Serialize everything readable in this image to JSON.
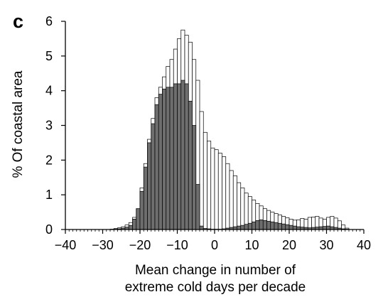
{
  "chart_data": {
    "type": "bar",
    "panel_label": "c",
    "xlabel_lines": [
      "Mean change in number of",
      "extreme cold days per decade"
    ],
    "ylabel": "% Of coastal area",
    "xlim": [
      -40,
      40
    ],
    "ylim": [
      0,
      6
    ],
    "xticks": [
      -40,
      -30,
      -20,
      -10,
      0,
      10,
      20,
      30,
      40
    ],
    "yticks": [
      0,
      1,
      2,
      3,
      4,
      5,
      6
    ],
    "bin_width": 1,
    "grid": false,
    "legend": "none",
    "colors": {
      "outline": "#000000",
      "white_bars": "#ffffff",
      "grey_bars": "#6e6e6e"
    },
    "series": [
      {
        "fill": "white",
        "x": [
          -40,
          -39,
          -38,
          -37,
          -36,
          -35,
          -34,
          -33,
          -32,
          -31,
          -30,
          -29,
          -28,
          -27,
          -26,
          -25,
          -24,
          -23,
          -22,
          -21,
          -20,
          -19,
          -18,
          -17,
          -16,
          -15,
          -14,
          -13,
          -12,
          -11,
          -10,
          -9,
          -8,
          -7,
          -6,
          -5,
          -4,
          -3,
          -2,
          -1,
          0,
          1,
          2,
          3,
          4,
          5,
          6,
          7,
          8,
          9,
          10,
          11,
          12,
          13,
          14,
          15,
          16,
          17,
          18,
          19,
          20,
          21,
          22,
          23,
          24,
          25,
          26,
          27,
          28,
          29,
          30,
          31,
          32,
          33,
          34,
          35
        ],
        "values": [
          0,
          0,
          0,
          0,
          0,
          0,
          0,
          0,
          0,
          0,
          0,
          0,
          0.01,
          0.03,
          0.05,
          0.08,
          0.13,
          0.2,
          0.35,
          0.6,
          1.2,
          1.9,
          2.6,
          3.2,
          3.8,
          4.1,
          4.4,
          4.7,
          4.9,
          5.2,
          5.5,
          5.75,
          5.6,
          5.4,
          4.9,
          4.3,
          3.4,
          2.8,
          2.55,
          2.35,
          2.3,
          2.2,
          2.1,
          1.9,
          1.7,
          1.55,
          1.35,
          1.2,
          1.05,
          0.95,
          0.85,
          0.75,
          0.68,
          0.6,
          0.55,
          0.5,
          0.46,
          0.42,
          0.38,
          0.34,
          0.3,
          0.27,
          0.28,
          0.32,
          0.3,
          0.35,
          0.36,
          0.38,
          0.33,
          0.3,
          0.35,
          0.38,
          0.33,
          0.25,
          0.13,
          0.04
        ]
      },
      {
        "fill": "grey",
        "x": [
          -35,
          -34,
          -33,
          -32,
          -31,
          -30,
          -29,
          -28,
          -27,
          -26,
          -25,
          -24,
          -23,
          -22,
          -21,
          -20,
          -19,
          -18,
          -17,
          -16,
          -15,
          -14,
          -13,
          -12,
          -11,
          -10,
          -9,
          -8,
          -7,
          -6,
          -5,
          -4,
          -3,
          -2,
          -1,
          0,
          1,
          2,
          3,
          4,
          5,
          6,
          7,
          8,
          9,
          10,
          11,
          12,
          13,
          14,
          15,
          16,
          17,
          18,
          19,
          20,
          21,
          22,
          23,
          24,
          25,
          26,
          27,
          28,
          29,
          30,
          31,
          32,
          33,
          34,
          35
        ],
        "values": [
          0,
          0,
          0,
          0,
          0,
          0,
          0,
          0,
          0.01,
          0.02,
          0.04,
          0.07,
          0.12,
          0.3,
          0.6,
          1.1,
          1.8,
          2.5,
          3.05,
          3.6,
          3.9,
          4.05,
          4.1,
          4.1,
          4.2,
          4.2,
          4.3,
          4.2,
          3.7,
          3.0,
          1.3,
          0.1,
          0.03,
          0.02,
          0.01,
          0.01,
          0.01,
          0.02,
          0.04,
          0.06,
          0.08,
          0.1,
          0.12,
          0.15,
          0.18,
          0.22,
          0.26,
          0.28,
          0.26,
          0.24,
          0.22,
          0.2,
          0.18,
          0.16,
          0.14,
          0.12,
          0.1,
          0.08,
          0.07,
          0.06,
          0.05,
          0.06,
          0.07,
          0.08,
          0.09,
          0.1,
          0.08,
          0.06,
          0.04,
          0.02,
          0.01
        ]
      }
    ]
  }
}
